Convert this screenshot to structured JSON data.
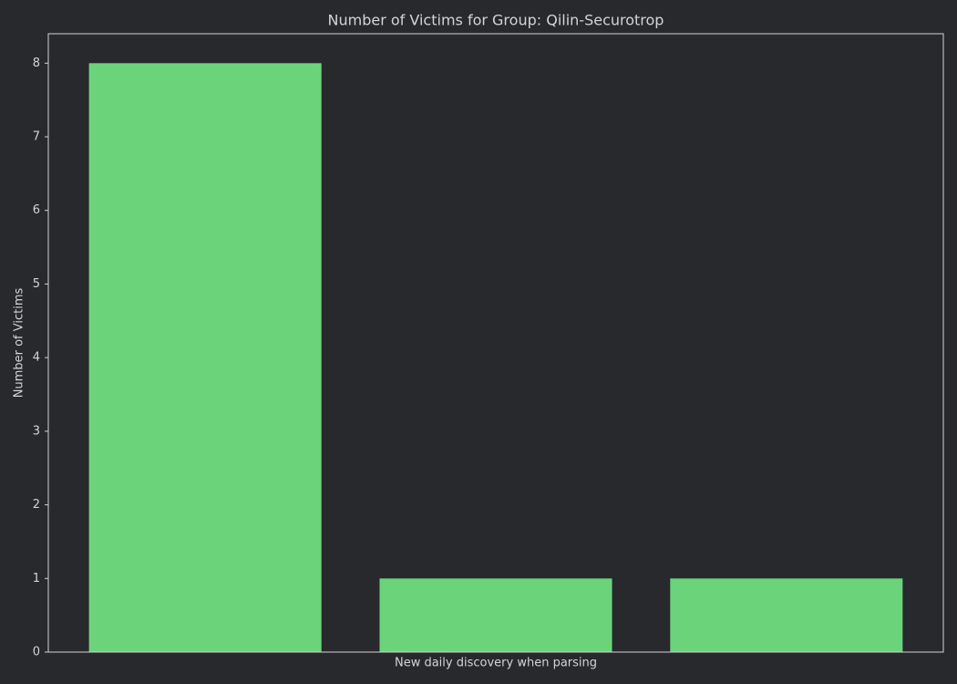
{
  "chart_data": {
    "type": "bar",
    "title": "Number of Victims for Group: Qilin-Securotrop",
    "x_label": "New daily discovery when parsing",
    "y_label": "Number of Victims",
    "categories": [
      null,
      null,
      null
    ],
    "values": [
      8,
      1,
      1
    ],
    "color": "#6bd47b",
    "ylim": [
      0,
      8.4
    ],
    "yticks": [
      0,
      1,
      2,
      3,
      4,
      5,
      6,
      7,
      8
    ],
    "grid": false
  }
}
